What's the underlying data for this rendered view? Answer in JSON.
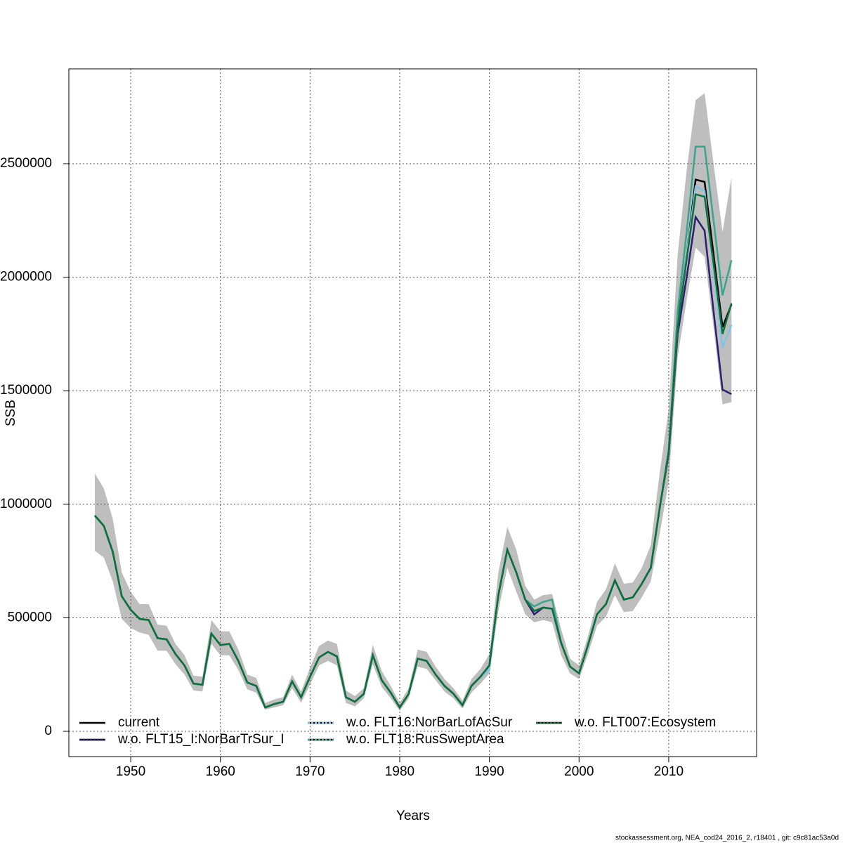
{
  "chart_data": {
    "type": "line",
    "x_label": "Years",
    "y_label": "SSB",
    "footnote": "stockassessment.org, NEA_cod24_2016_2, r18401 , git: c9c81ac53a0d",
    "x": [
      1946,
      1947,
      1948,
      1949,
      1950,
      1951,
      1952,
      1953,
      1954,
      1955,
      1956,
      1957,
      1958,
      1959,
      1960,
      1961,
      1962,
      1963,
      1964,
      1965,
      1966,
      1967,
      1968,
      1969,
      1970,
      1971,
      1972,
      1973,
      1974,
      1975,
      1976,
      1977,
      1978,
      1979,
      1980,
      1981,
      1982,
      1983,
      1984,
      1985,
      1986,
      1987,
      1988,
      1989,
      1990,
      1991,
      1992,
      1993,
      1994,
      1995,
      1996,
      1997,
      1998,
      1999,
      2000,
      2001,
      2002,
      2003,
      2004,
      2005,
      2006,
      2007,
      2008,
      2009,
      2010,
      2011,
      2012,
      2013,
      2014,
      2015,
      2016,
      2017
    ],
    "ci_upper": [
      1135000,
      1070000,
      935000,
      700000,
      615000,
      560000,
      560000,
      470000,
      465000,
      385000,
      335000,
      245000,
      240000,
      490000,
      440000,
      440000,
      360000,
      250000,
      235000,
      125000,
      140000,
      150000,
      250000,
      175000,
      280000,
      375000,
      400000,
      385000,
      180000,
      155000,
      190000,
      380000,
      265000,
      200000,
      125000,
      190000,
      360000,
      350000,
      285000,
      230000,
      190000,
      135000,
      230000,
      275000,
      340000,
      700000,
      900000,
      800000,
      640000,
      580000,
      600000,
      605000,
      450000,
      320000,
      290000,
      420000,
      570000,
      625000,
      740000,
      650000,
      655000,
      720000,
      820000,
      1140000,
      1420000,
      2100000,
      2470000,
      2780000,
      2810000,
      2500000,
      2200000,
      2440000
    ],
    "ci_lower": [
      795000,
      765000,
      660000,
      495000,
      455000,
      435000,
      425000,
      355000,
      355000,
      295000,
      250000,
      180000,
      175000,
      385000,
      335000,
      335000,
      270000,
      185000,
      170000,
      95000,
      105000,
      115000,
      190000,
      125000,
      205000,
      290000,
      310000,
      290000,
      125000,
      110000,
      145000,
      295000,
      195000,
      145000,
      90000,
      145000,
      285000,
      275000,
      225000,
      175000,
      145000,
      100000,
      170000,
      210000,
      255000,
      530000,
      720000,
      615000,
      515000,
      480000,
      490000,
      480000,
      335000,
      255000,
      230000,
      340000,
      465000,
      505000,
      600000,
      525000,
      530000,
      590000,
      660000,
      870000,
      1100000,
      1650000,
      1900000,
      2130000,
      2090000,
      1780000,
      1440000,
      1450000
    ],
    "ci_color": "#bebebe",
    "series": [
      {
        "name": "current",
        "color": "#000000",
        "values": [
          950000,
          905000,
          790000,
          595000,
          535000,
          495000,
          490000,
          410000,
          405000,
          340000,
          290000,
          210000,
          205000,
          430000,
          380000,
          385000,
          310000,
          215000,
          200000,
          105000,
          120000,
          130000,
          220000,
          150000,
          240000,
          325000,
          350000,
          330000,
          150000,
          130000,
          165000,
          335000,
          225000,
          170000,
          105000,
          165000,
          320000,
          310000,
          250000,
          200000,
          165000,
          115000,
          200000,
          240000,
          290000,
          600000,
          800000,
          700000,
          580000,
          530000,
          545000,
          540000,
          390000,
          285000,
          255000,
          380000,
          515000,
          560000,
          665000,
          580000,
          590000,
          650000,
          720000,
          985000,
          1230000,
          1800000,
          2100000,
          2430000,
          2420000,
          2100000,
          1780000,
          1880000
        ]
      },
      {
        "name": "w.o. FLT15_I:NorBarTrSur_I",
        "color": "#2b1f70",
        "values": [
          950000,
          905000,
          790000,
          595000,
          535000,
          495000,
          490000,
          410000,
          405000,
          340000,
          290000,
          210000,
          205000,
          430000,
          380000,
          385000,
          310000,
          215000,
          200000,
          105000,
          120000,
          130000,
          220000,
          150000,
          240000,
          325000,
          350000,
          330000,
          150000,
          130000,
          165000,
          335000,
          225000,
          170000,
          105000,
          165000,
          320000,
          310000,
          250000,
          200000,
          165000,
          115000,
          200000,
          240000,
          290000,
          600000,
          800000,
          700000,
          580000,
          515000,
          545000,
          540000,
          390000,
          285000,
          255000,
          380000,
          515000,
          560000,
          665000,
          580000,
          590000,
          650000,
          720000,
          985000,
          1220000,
          1750000,
          2000000,
          2265000,
          2205000,
          1850000,
          1505000,
          1485000
        ]
      },
      {
        "name": "w.o. FLT16:NorBarLofAcSur",
        "color": "#7fc4e8",
        "values": [
          950000,
          905000,
          790000,
          595000,
          535000,
          495000,
          490000,
          410000,
          405000,
          340000,
          290000,
          210000,
          205000,
          430000,
          380000,
          385000,
          310000,
          215000,
          200000,
          105000,
          120000,
          130000,
          220000,
          150000,
          240000,
          325000,
          350000,
          330000,
          150000,
          130000,
          165000,
          335000,
          225000,
          170000,
          105000,
          165000,
          320000,
          310000,
          250000,
          200000,
          165000,
          115000,
          200000,
          240000,
          270000,
          600000,
          800000,
          700000,
          580000,
          530000,
          545000,
          540000,
          390000,
          285000,
          255000,
          380000,
          515000,
          560000,
          665000,
          580000,
          590000,
          650000,
          720000,
          985000,
          1230000,
          1780000,
          2100000,
          2400000,
          2380000,
          2030000,
          1690000,
          1790000
        ]
      },
      {
        "name": "w.o. FLT18:RusSweptArea",
        "color": "#3aa58c",
        "values": [
          950000,
          905000,
          790000,
          595000,
          535000,
          495000,
          490000,
          410000,
          405000,
          340000,
          290000,
          210000,
          205000,
          430000,
          380000,
          385000,
          310000,
          215000,
          200000,
          105000,
          120000,
          130000,
          220000,
          150000,
          240000,
          325000,
          350000,
          330000,
          150000,
          130000,
          165000,
          335000,
          225000,
          170000,
          105000,
          165000,
          320000,
          310000,
          250000,
          200000,
          165000,
          115000,
          200000,
          240000,
          290000,
          600000,
          800000,
          700000,
          580000,
          550000,
          570000,
          580000,
          390000,
          285000,
          255000,
          380000,
          515000,
          560000,
          665000,
          580000,
          590000,
          650000,
          720000,
          985000,
          1240000,
          1850000,
          2200000,
          2575000,
          2575000,
          2250000,
          1920000,
          2075000
        ]
      },
      {
        "name": "w.o. FLT007:Ecosystem",
        "color": "#0e6e3c",
        "values": [
          950000,
          905000,
          790000,
          595000,
          535000,
          495000,
          490000,
          410000,
          405000,
          340000,
          290000,
          210000,
          205000,
          430000,
          380000,
          385000,
          310000,
          215000,
          200000,
          105000,
          120000,
          130000,
          220000,
          150000,
          240000,
          325000,
          350000,
          330000,
          150000,
          130000,
          165000,
          335000,
          225000,
          170000,
          105000,
          165000,
          320000,
          310000,
          250000,
          200000,
          165000,
          115000,
          200000,
          240000,
          290000,
          600000,
          800000,
          700000,
          580000,
          530000,
          545000,
          540000,
          390000,
          285000,
          255000,
          380000,
          515000,
          560000,
          665000,
          580000,
          590000,
          650000,
          720000,
          985000,
          1230000,
          1780000,
          2080000,
          2365000,
          2355000,
          2060000,
          1750000,
          1885000
        ]
      }
    ],
    "xlim": [
      1943.1,
      2019.8
    ],
    "ylim": [
      -111400,
      2917700
    ],
    "xticks": [
      1950,
      1960,
      1970,
      1980,
      1990,
      2000,
      2010
    ],
    "yticks": [
      0,
      500000,
      1000000,
      1500000,
      2000000,
      2500000
    ],
    "grid": true
  }
}
